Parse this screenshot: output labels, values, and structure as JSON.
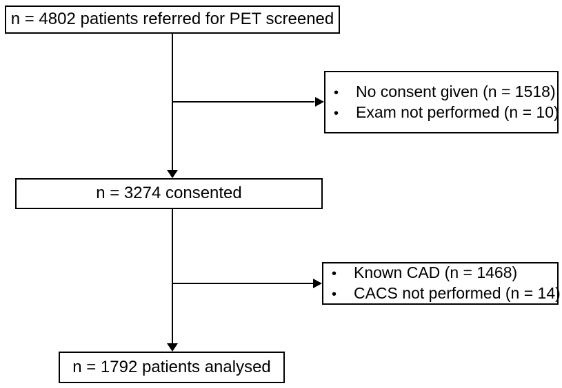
{
  "diagram": {
    "type": "patient-flow-chart",
    "bullet_glyph": "•",
    "colors": {
      "line": "#000000",
      "text": "#000000",
      "background": "#ffffff"
    },
    "boxes": {
      "referred": {
        "label": "n = 4802 patients referred for PET screened"
      },
      "exclusion_top": {
        "items": [
          "No consent given (n = 1518)",
          "Exam not performed (n = 10)"
        ]
      },
      "consented": {
        "label": "n = 3274 consented"
      },
      "exclusion_bottom": {
        "items": [
          "Known CAD (n = 1468)",
          "CACS not performed (n = 14)"
        ]
      },
      "analysed": {
        "label": "n = 1792 patients analysed"
      }
    }
  }
}
